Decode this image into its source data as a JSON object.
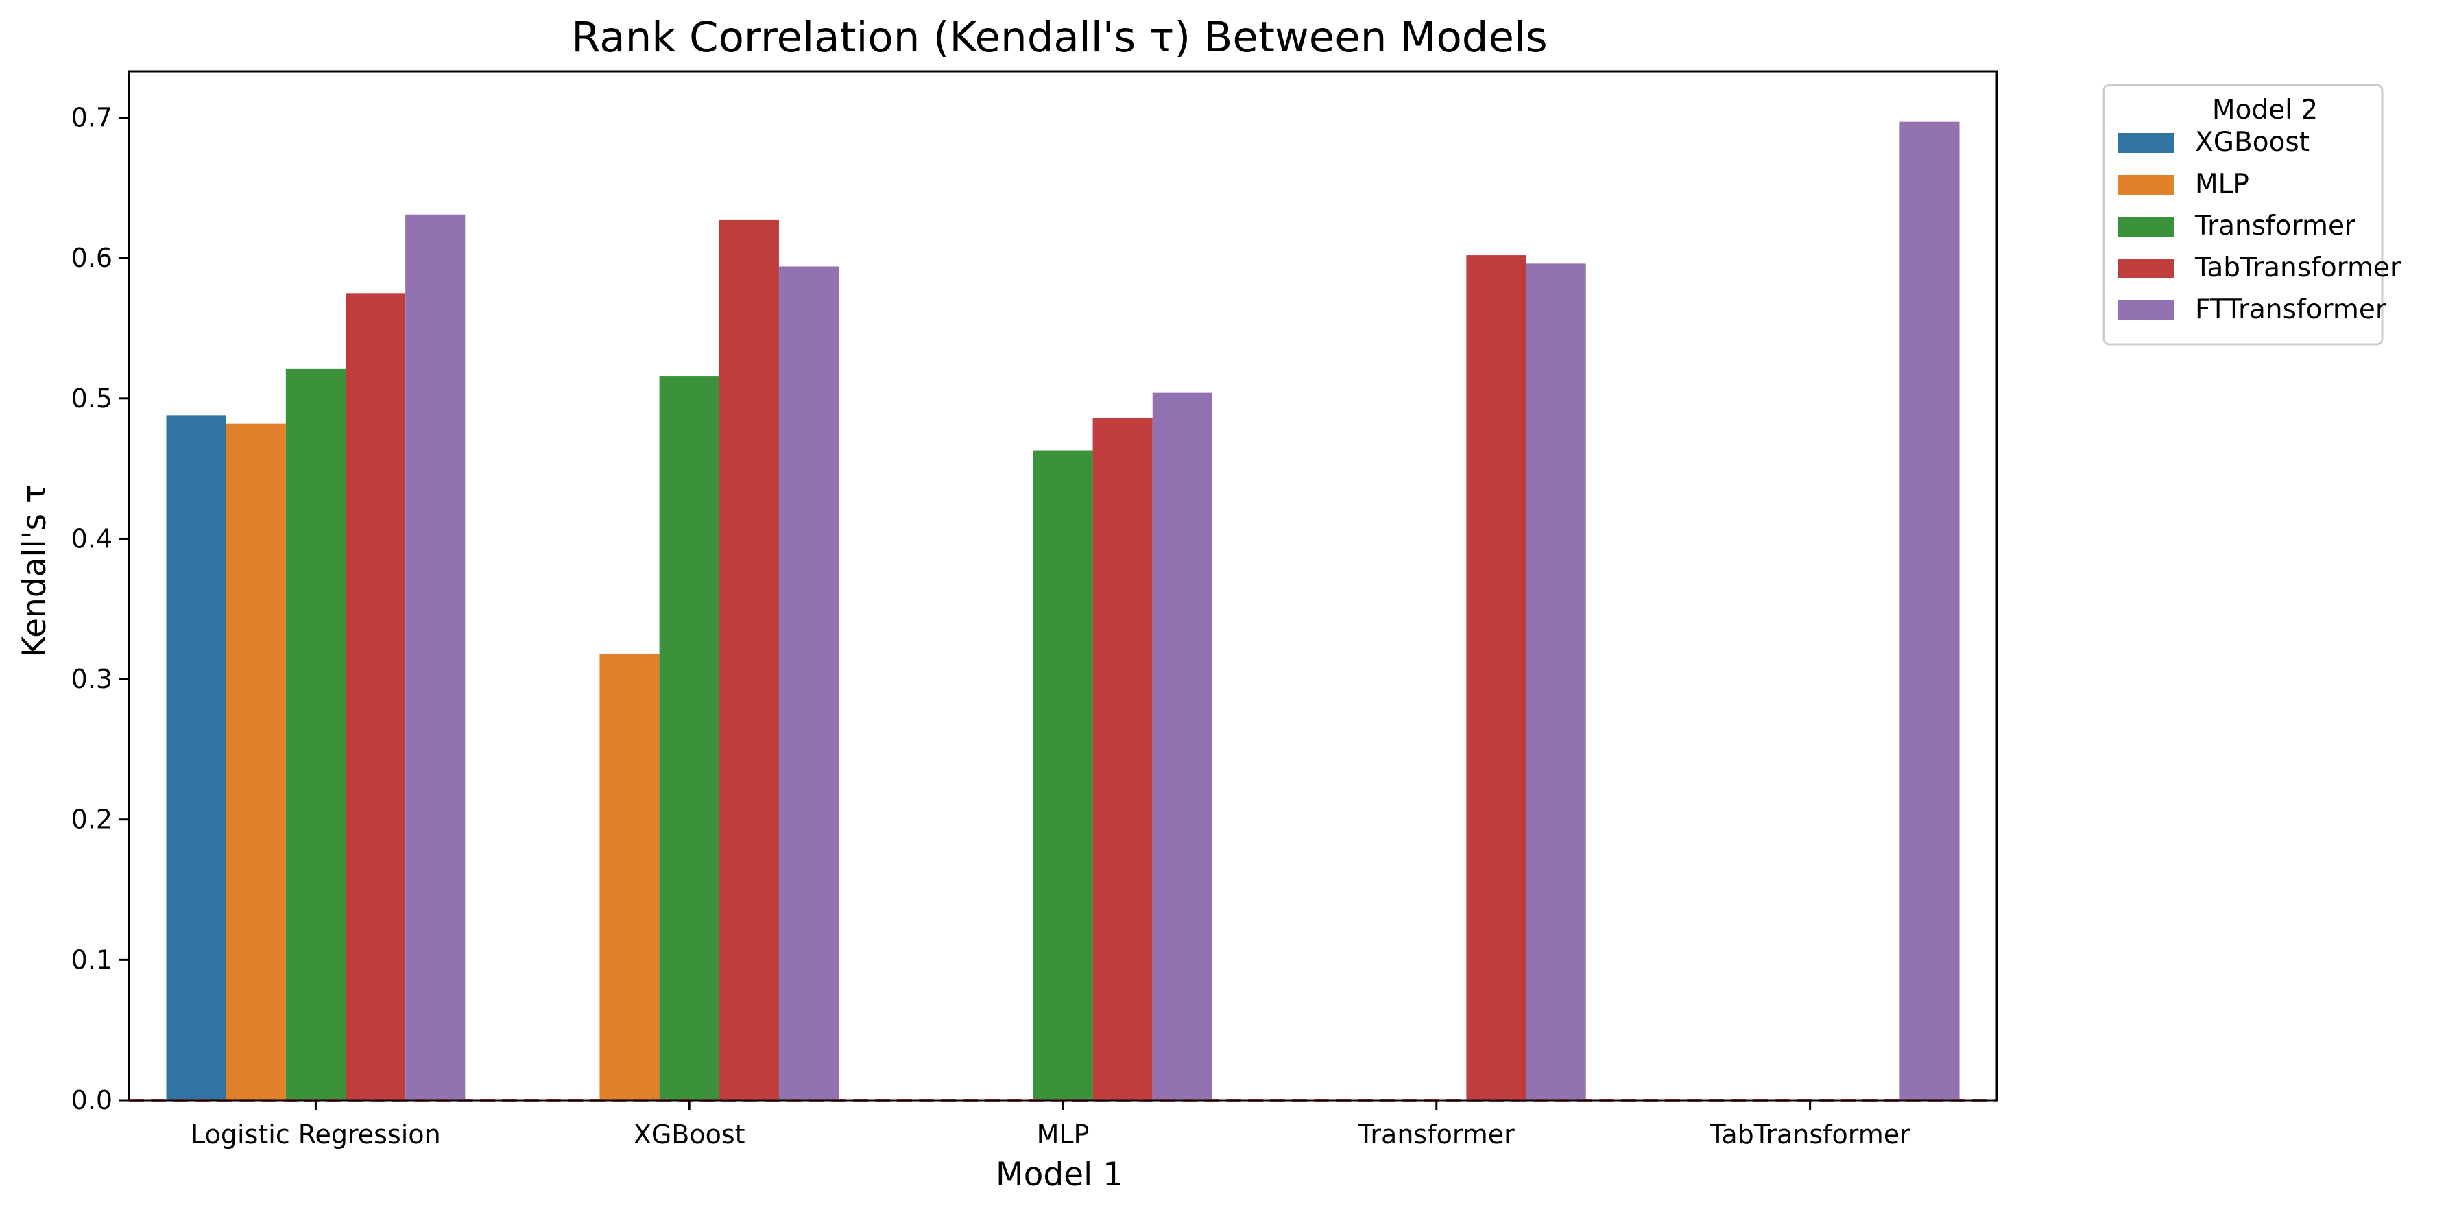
{
  "chart_data": {
    "type": "bar",
    "title": "Rank Correlation (Kendall's τ) Between Models",
    "xlabel": "Model 1",
    "ylabel": "Kendall's τ",
    "categories": [
      "Logistic Regression",
      "XGBoost",
      "MLP",
      "Transformer",
      "TabTransformer"
    ],
    "ylim": [
      0,
      0.733
    ],
    "yticks": [
      "0.0",
      "0.1",
      "0.2",
      "0.3",
      "0.4",
      "0.5",
      "0.6",
      "0.7"
    ],
    "grid": false,
    "legend": {
      "title": "Model 2",
      "placement": "outside-top-right"
    },
    "reference_line": {
      "y": 0,
      "style": "dashed",
      "color": "#c44e52"
    },
    "series": [
      {
        "name": "XGBoost",
        "color": "#3274a1",
        "values": [
          0.488,
          null,
          null,
          null,
          null
        ]
      },
      {
        "name": "MLP",
        "color": "#e1812c",
        "values": [
          0.482,
          0.318,
          null,
          null,
          null
        ]
      },
      {
        "name": "Transformer",
        "color": "#3a923a",
        "values": [
          0.521,
          0.516,
          0.463,
          null,
          null
        ]
      },
      {
        "name": "TabTransformer",
        "color": "#c03d3e",
        "values": [
          0.575,
          0.627,
          0.486,
          0.602,
          null
        ]
      },
      {
        "name": "FTTransformer",
        "color": "#9372b2",
        "values": [
          0.631,
          0.594,
          0.504,
          0.596,
          0.697
        ]
      }
    ]
  }
}
